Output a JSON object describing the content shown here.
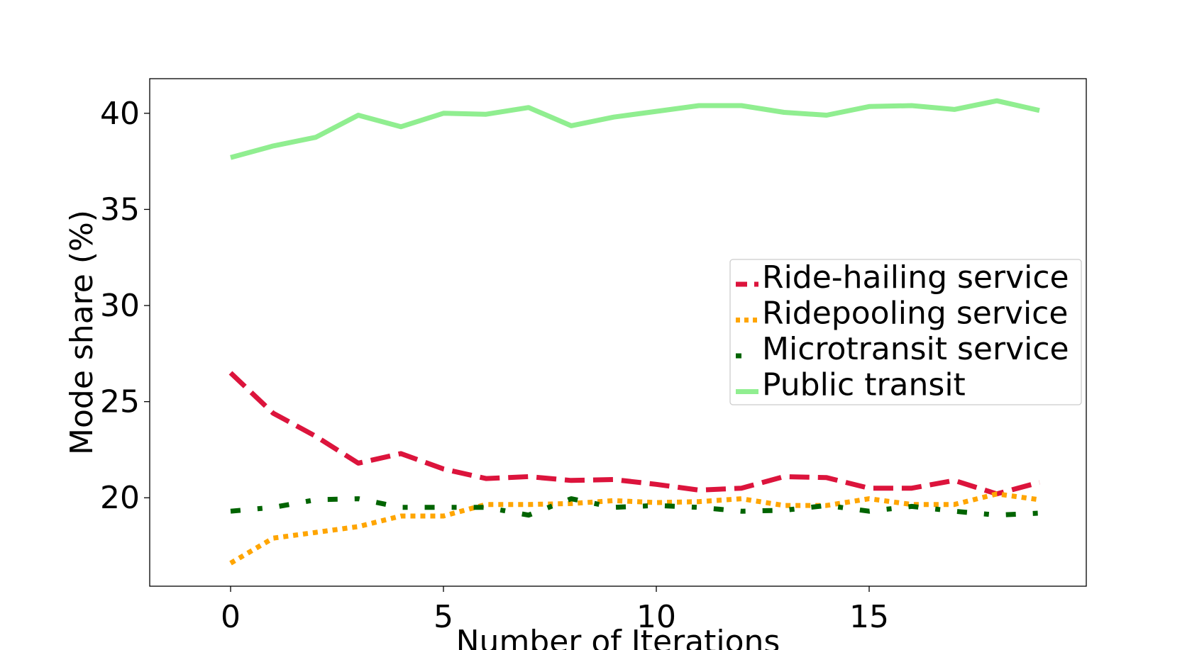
{
  "chart_data": {
    "type": "line",
    "title": "",
    "xlabel": "Number of Iterations",
    "ylabel": "Mode share (%)",
    "xlim": [
      -1.9,
      20.1
    ],
    "ylim": [
      15.4,
      41.8
    ],
    "x_ticks": [
      0,
      5,
      10,
      15
    ],
    "y_ticks": [
      20,
      25,
      30,
      35,
      40
    ],
    "grid": false,
    "legend_position": "center-right",
    "x": [
      0,
      1,
      2,
      3,
      4,
      5,
      6,
      7,
      8,
      9,
      10,
      11,
      12,
      13,
      14,
      15,
      16,
      17,
      18,
      19
    ],
    "series": [
      {
        "name": "Ride-hailing service",
        "color": "#dc143c",
        "style": "dashed",
        "values": [
          26.5,
          24.4,
          23.2,
          21.8,
          22.3,
          21.5,
          21.0,
          21.1,
          20.9,
          20.95,
          20.7,
          20.4,
          20.5,
          21.1,
          21.05,
          20.5,
          20.5,
          20.9,
          20.2,
          20.8
        ]
      },
      {
        "name": "Ridepooling service",
        "color": "#ffa500",
        "style": "dotted",
        "values": [
          16.6,
          17.9,
          18.2,
          18.5,
          19.05,
          19.05,
          19.65,
          19.65,
          19.7,
          19.85,
          19.75,
          19.8,
          19.95,
          19.6,
          19.6,
          19.95,
          19.65,
          19.65,
          20.2,
          19.9
        ]
      },
      {
        "name": "Microtransit service",
        "color": "#006400",
        "style": "dashdot",
        "values": [
          19.3,
          19.5,
          19.9,
          19.95,
          19.5,
          19.5,
          19.5,
          19.1,
          19.95,
          19.5,
          19.6,
          19.5,
          19.3,
          19.35,
          19.6,
          19.3,
          19.55,
          19.3,
          19.1,
          19.2
        ]
      },
      {
        "name": "Public transit",
        "color": "#90ee90",
        "style": "solid",
        "values": [
          37.7,
          38.3,
          38.75,
          39.9,
          39.3,
          40.0,
          39.95,
          40.3,
          39.35,
          39.8,
          40.1,
          40.4,
          40.4,
          40.05,
          39.9,
          40.35,
          40.4,
          40.2,
          40.65,
          40.15
        ]
      }
    ]
  }
}
